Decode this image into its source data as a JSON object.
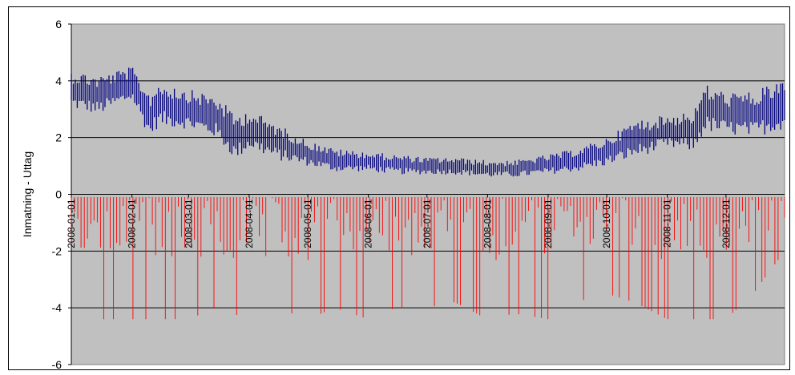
{
  "chart_data": {
    "type": "line",
    "title": "",
    "xlabel": "",
    "ylabel": "Inmatning - Uttag",
    "ylim": [
      -6,
      6
    ],
    "yticks": [
      "6",
      "4",
      "2",
      "0",
      "-2",
      "-4",
      "-6"
    ],
    "x_tick_labels": [
      "2008-01-01",
      "2008-02-01",
      "2008-03-01",
      "2008-04-01",
      "2008-05-01",
      "2008-06-01",
      "2008-07-01",
      "2008-08-01",
      "2008-09-01",
      "2008-10-01",
      "2008-11-01",
      "2008-12-01"
    ],
    "xlim": [
      "2008-01-01",
      "2008-12-31"
    ],
    "grid": true,
    "plot_background": "#c0c0c0",
    "series": [
      {
        "color": "#000080",
        "x": [
          "2008-01-01",
          "2008-01-15",
          "2008-02-01",
          "2008-02-10",
          "2008-02-15",
          "2008-03-01",
          "2008-03-15",
          "2008-03-25",
          "2008-04-01",
          "2008-04-15",
          "2008-05-01",
          "2008-05-15",
          "2008-06-01",
          "2008-06-15",
          "2008-07-01",
          "2008-07-15",
          "2008-08-01",
          "2008-08-15",
          "2008-09-01",
          "2008-09-15",
          "2008-10-01",
          "2008-10-15",
          "2008-11-01",
          "2008-11-15",
          "2008-11-20",
          "2008-12-01",
          "2008-12-15",
          "2008-12-31"
        ],
        "low": [
          3.0,
          2.8,
          3.3,
          2.0,
          2.4,
          2.3,
          2.0,
          1.2,
          1.6,
          1.2,
          1.0,
          0.8,
          0.8,
          0.7,
          0.7,
          0.7,
          0.6,
          0.6,
          0.7,
          0.8,
          1.0,
          1.3,
          1.6,
          1.5,
          2.2,
          2.1,
          2.0,
          2.3
        ],
        "high": [
          4.4,
          4.2,
          4.5,
          3.6,
          4.0,
          3.7,
          3.5,
          2.8,
          3.0,
          2.5,
          1.9,
          1.6,
          1.5,
          1.4,
          1.3,
          1.3,
          1.2,
          1.2,
          1.4,
          1.6,
          2.0,
          2.6,
          2.8,
          3.0,
          3.9,
          3.6,
          3.6,
          4.1
        ]
      },
      {
        "color": "#ff0000",
        "x": [
          "2008-01-01",
          "2008-01-15",
          "2008-02-01",
          "2008-02-15",
          "2008-03-01",
          "2008-03-15",
          "2008-04-01",
          "2008-04-15",
          "2008-05-01",
          "2008-05-15",
          "2008-06-01",
          "2008-06-15",
          "2008-07-01",
          "2008-07-15",
          "2008-08-01",
          "2008-08-15",
          "2008-09-01",
          "2008-09-15",
          "2008-10-01",
          "2008-10-15",
          "2008-11-01",
          "2008-11-15",
          "2008-12-01",
          "2008-12-15",
          "2008-12-31"
        ],
        "low": [
          -4.4,
          -4.4,
          -4.4,
          -4.4,
          -4.4,
          -4.0,
          -4.4,
          -4.0,
          -4.4,
          -4.0,
          -4.4,
          -4.0,
          -4.0,
          -3.8,
          -4.4,
          -4.2,
          -4.4,
          -3.8,
          -3.5,
          -3.8,
          -4.4,
          -4.4,
          -4.4,
          -3.5,
          -2.0
        ],
        "high": [
          -0.1,
          -0.1,
          -0.1,
          -0.1,
          -0.1,
          -0.1,
          -0.1,
          -0.1,
          -0.1,
          -0.1,
          -0.1,
          -0.1,
          -0.1,
          -0.1,
          -0.1,
          -0.1,
          -0.1,
          -0.1,
          -0.1,
          -0.1,
          -0.1,
          -0.1,
          -0.1,
          -0.1,
          -0.1
        ]
      }
    ]
  }
}
